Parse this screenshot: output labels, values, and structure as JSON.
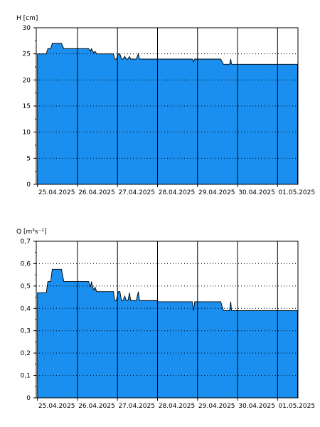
{
  "chart_data": [
    {
      "type": "area",
      "ylabel": "H [cm]",
      "ylim": [
        0,
        30
      ],
      "yticks": [
        0,
        5,
        10,
        15,
        20,
        25,
        30
      ],
      "ytick_labels": [
        "0",
        "5",
        "10",
        "15",
        "20",
        "25",
        "30"
      ],
      "xlim": [
        24.97,
        31.51
      ],
      "xticks": [
        25.0,
        26.0,
        27.0,
        28.0,
        29.0,
        30.0,
        31.0
      ],
      "xtick_labels": [
        "25.04.2025",
        "26.04.2025",
        "27.04.2025",
        "28.04.2025",
        "29.04.2025",
        "30.04.2025",
        "01.05.2025"
      ],
      "x_unit": "day of April 2025",
      "grid": true,
      "color": "#1a8fef",
      "x": [
        25.0,
        25.22,
        25.26,
        25.33,
        25.37,
        25.6,
        25.66,
        26.28,
        26.32,
        26.35,
        26.38,
        26.42,
        26.44,
        26.48,
        26.52,
        26.6,
        26.9,
        26.93,
        26.97,
        27.02,
        27.06,
        27.1,
        27.14,
        27.18,
        27.22,
        27.26,
        27.3,
        27.33,
        27.37,
        27.43,
        27.47,
        27.52,
        27.55,
        27.98,
        28.02,
        28.87,
        28.9,
        28.93,
        28.97,
        29.58,
        29.65,
        29.75,
        29.8,
        29.83,
        29.85,
        30.2,
        30.24,
        30.27,
        30.45,
        30.48,
        30.51,
        30.6,
        31.25,
        31.5
      ],
      "y": [
        25.0,
        25.0,
        26.0,
        26.0,
        27.0,
        27.0,
        26.0,
        26.0,
        25.5,
        26.0,
        25.5,
        25.2,
        25.5,
        25.0,
        25.0,
        25.0,
        25.0,
        24.0,
        24.0,
        25.0,
        25.0,
        24.0,
        24.0,
        24.5,
        24.0,
        24.0,
        24.5,
        24.0,
        24.0,
        24.0,
        24.0,
        25.0,
        24.0,
        24.0,
        24.0,
        24.0,
        23.5,
        24.0,
        24.0,
        24.0,
        23.0,
        23.0,
        23.0,
        24.0,
        23.0,
        23.0,
        23.0,
        23.0,
        23.0,
        23.0,
        23.0,
        23.0,
        23.0,
        23.0
      ]
    },
    {
      "type": "area",
      "ylabel": "Q [m³s⁻¹]",
      "ylim": [
        0,
        0.7
      ],
      "yticks": [
        0,
        0.1,
        0.2,
        0.3,
        0.4,
        0.5,
        0.6,
        0.7
      ],
      "ytick_labels": [
        "0",
        "0,1",
        "0,2",
        "0,3",
        "0,4",
        "0,5",
        "0,6",
        "0,7"
      ],
      "xlim": [
        24.97,
        31.51
      ],
      "xticks": [
        25.0,
        26.0,
        27.0,
        28.0,
        29.0,
        30.0,
        31.0
      ],
      "xtick_labels": [
        "25.04.2025",
        "26.04.2025",
        "27.04.2025",
        "28.04.2025",
        "29.04.2025",
        "30.04.2025",
        "01.05.2025"
      ],
      "x_unit": "day of April 2025",
      "grid": true,
      "color": "#1a8fef",
      "x": [
        25.0,
        25.22,
        25.26,
        25.33,
        25.37,
        25.6,
        25.66,
        26.28,
        26.32,
        26.35,
        26.38,
        26.42,
        26.44,
        26.48,
        26.52,
        26.6,
        26.9,
        26.93,
        26.97,
        27.02,
        27.06,
        27.1,
        27.14,
        27.18,
        27.22,
        27.26,
        27.3,
        27.33,
        27.37,
        27.43,
        27.47,
        27.52,
        27.55,
        27.98,
        28.02,
        28.87,
        28.9,
        28.93,
        28.97,
        29.58,
        29.65,
        29.75,
        29.8,
        29.83,
        29.85,
        30.2,
        30.24,
        30.27,
        30.45,
        30.48,
        30.51,
        30.6,
        31.25,
        31.5
      ],
      "y": [
        0.47,
        0.47,
        0.52,
        0.52,
        0.575,
        0.575,
        0.52,
        0.52,
        0.495,
        0.52,
        0.495,
        0.48,
        0.495,
        0.475,
        0.475,
        0.475,
        0.475,
        0.435,
        0.435,
        0.475,
        0.475,
        0.435,
        0.435,
        0.455,
        0.435,
        0.435,
        0.47,
        0.435,
        0.435,
        0.435,
        0.435,
        0.475,
        0.435,
        0.435,
        0.43,
        0.43,
        0.39,
        0.43,
        0.43,
        0.43,
        0.39,
        0.39,
        0.39,
        0.43,
        0.39,
        0.39,
        0.39,
        0.39,
        0.39,
        0.39,
        0.39,
        0.39,
        0.39,
        0.39
      ]
    }
  ]
}
